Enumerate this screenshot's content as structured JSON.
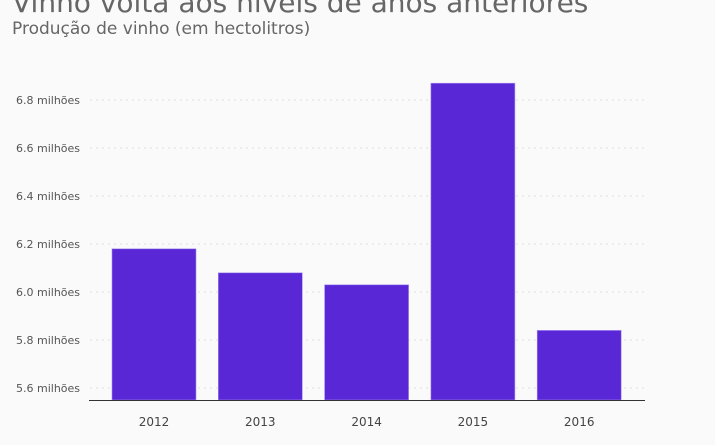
{
  "chart_data": {
    "type": "bar",
    "title": "Vinho volta aos níveis de anos anteriores",
    "subtitle": "Produção de vinho (em hectolitros)",
    "xlabel": "",
    "ylabel": "",
    "categories": [
      "2012",
      "2013",
      "2014",
      "2015",
      "2016"
    ],
    "values": [
      6.18,
      6.08,
      6.03,
      6.87,
      5.84
    ],
    "value_unit": "milhões",
    "ylim": [
      5.55,
      6.95
    ],
    "yticks": [
      5.6,
      5.8,
      6.0,
      6.2,
      6.4,
      6.6,
      6.8
    ],
    "ytick_labels": [
      "5.6 milhões",
      "5.8 milhões",
      "6.0 milhões",
      "6.2 milhões",
      "6.4 milhões",
      "6.6 milhões",
      "6.8 milhões"
    ],
    "grid": true,
    "bar_color": "#5a27d6"
  }
}
